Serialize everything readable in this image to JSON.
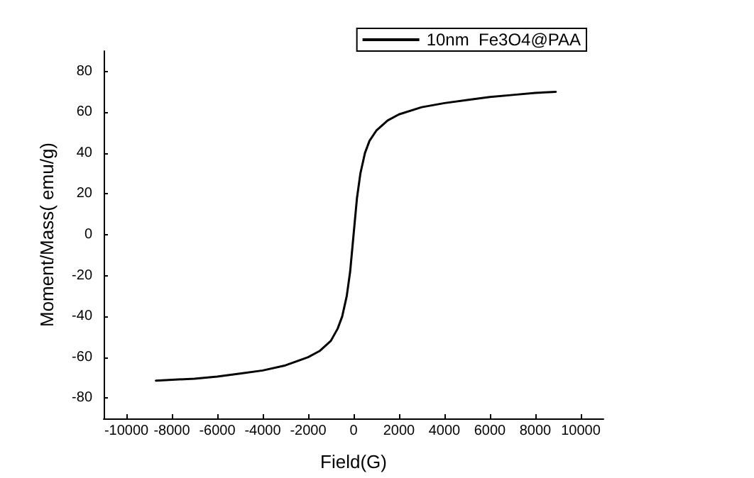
{
  "chart_data": {
    "type": "line",
    "xlabel": "Field(G)",
    "ylabel": "Moment/Mass( emu/g)",
    "x": [
      -8700,
      -7000,
      -6000,
      -5000,
      -4000,
      -3000,
      -2000,
      -1500,
      -1000,
      -700,
      -500,
      -300,
      -150,
      0,
      150,
      300,
      500,
      700,
      1000,
      1500,
      2000,
      3000,
      4000,
      5000,
      6000,
      7000,
      8000,
      8900
    ],
    "series": [
      {
        "name": "10nm  Fe3O4@PAA",
        "color": "#000000",
        "values": [
          -71.5,
          -70.5,
          -69.5,
          -68,
          -66.5,
          -64,
          -60,
          -57,
          -52,
          -46,
          -40,
          -30,
          -18,
          0,
          18,
          30,
          40,
          46,
          51,
          56,
          59,
          62.5,
          64.5,
          66,
          67.5,
          68.5,
          69.5,
          70
        ]
      }
    ],
    "xlim": [
      -11000,
      11000
    ],
    "xticks": [
      -10000,
      -8000,
      -6000,
      -4000,
      -2000,
      0,
      2000,
      4000,
      6000,
      8000,
      10000
    ],
    "ylim": [
      -90,
      90
    ],
    "yticks": [
      -80,
      -60,
      -40,
      -20,
      0,
      20,
      40,
      60,
      80
    ],
    "grid": false,
    "legend": "top right",
    "marker": "none",
    "line_style": "solid"
  }
}
